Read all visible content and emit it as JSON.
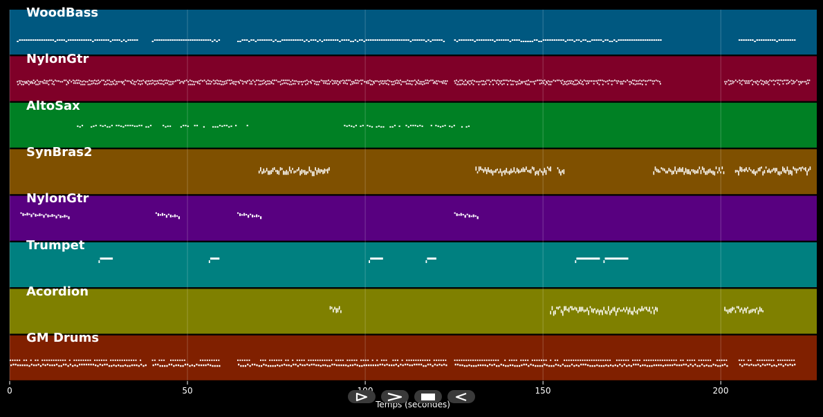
{
  "xaxis": {
    "label": "Temps (secondes)",
    "ticks": [
      "0",
      "50",
      "100",
      "150",
      "200"
    ],
    "range": [
      0,
      227
    ]
  },
  "controls": {
    "play_icon": "play-outline-icon",
    "forward_icon": "chevron-right-icon",
    "stop_icon": "stop-icon",
    "rewind_icon": "rewind-outline-icon"
  },
  "tracks": [
    {
      "name": "WoodBass",
      "color": "#005880",
      "segments": [
        [
          2,
          36,
          "dense"
        ],
        [
          40,
          59,
          "dense"
        ],
        [
          64,
          122,
          "dense"
        ],
        [
          125,
          183,
          "dense"
        ],
        [
          205,
          221,
          "dense"
        ]
      ]
    },
    {
      "name": "NylonGtr",
      "color": "#7f0028",
      "segments": [
        [
          2,
          123,
          "chord"
        ],
        [
          125,
          183,
          "chord"
        ],
        [
          201,
          225,
          "chord"
        ]
      ]
    },
    {
      "name": "AltoSax",
      "color": "#008024",
      "segments": [
        [
          17,
          40,
          "sparse"
        ],
        [
          43,
          45,
          "sparse"
        ],
        [
          48,
          65,
          "sparse"
        ],
        [
          66,
          67,
          "sparse"
        ],
        [
          94,
          125,
          "sparse"
        ],
        [
          127,
          129,
          "sparse"
        ]
      ]
    },
    {
      "name": "SynBras2",
      "color": "#7f5000",
      "segments": [
        [
          70,
          90,
          "block"
        ],
        [
          131,
          152,
          "block"
        ],
        [
          154,
          156,
          "block"
        ],
        [
          181,
          201,
          "block"
        ],
        [
          204,
          225,
          "block"
        ]
      ]
    },
    {
      "name": "NylonGtr",
      "color": "#580080",
      "segments": [
        [
          3,
          17,
          "descend"
        ],
        [
          41,
          48,
          "descend"
        ],
        [
          64,
          71,
          "descend"
        ],
        [
          125,
          132,
          "descend"
        ]
      ]
    },
    {
      "name": "Trumpet",
      "color": "#008080",
      "segments": [
        [
          25,
          29,
          "single"
        ],
        [
          56,
          59,
          "single"
        ],
        [
          101,
          105,
          "single"
        ],
        [
          117,
          120,
          "single"
        ],
        [
          159,
          166,
          "single"
        ],
        [
          167,
          174,
          "single"
        ]
      ]
    },
    {
      "name": "Acordion",
      "color": "#7f8000",
      "segments": [
        [
          90,
          93,
          "block"
        ],
        [
          152,
          182,
          "block"
        ],
        [
          201,
          212,
          "block"
        ]
      ]
    },
    {
      "name": "GM Drums",
      "color": "#802000",
      "segments": [
        [
          0,
          38,
          "drums"
        ],
        [
          40,
          59,
          "drums"
        ],
        [
          64,
          123,
          "drums"
        ],
        [
          125,
          202,
          "drums"
        ],
        [
          205,
          221,
          "drums"
        ]
      ]
    }
  ]
}
